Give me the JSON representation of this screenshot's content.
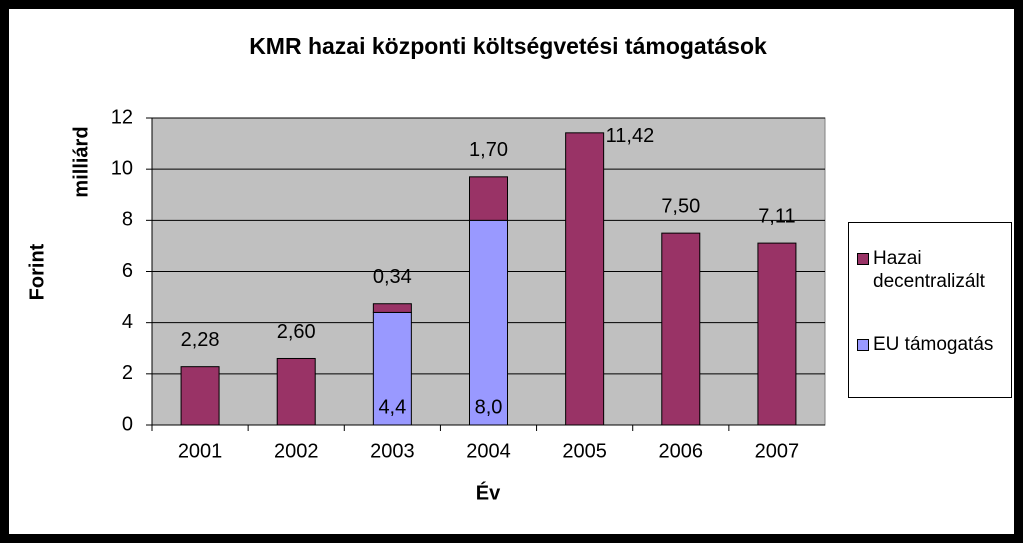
{
  "chart_data": {
    "type": "stacked_bar",
    "title": "KMR hazai központi költségvetési támogatások",
    "x_label": "Év",
    "y_label": [
      "Forint",
      "milliárd"
    ],
    "categories": [
      "2001",
      "2002",
      "2003",
      "2004",
      "2005",
      "2006",
      "2007"
    ],
    "series": [
      {
        "name": "EU támogatás",
        "color": "#9999ff",
        "values": [
          null,
          null,
          4.4,
          8.0,
          null,
          null,
          null
        ],
        "value_labels": [
          null,
          null,
          "4,4",
          "8,0",
          null,
          null,
          null
        ]
      },
      {
        "name": "Hazai decentralizált",
        "color": "#993366",
        "values": [
          2.28,
          2.6,
          0.34,
          1.7,
          11.42,
          7.5,
          7.11
        ],
        "value_labels": [
          "2,28",
          "2,60",
          "0,34",
          "1,70",
          "11,42",
          "7,50",
          "7,11"
        ]
      }
    ],
    "ylim": [
      0,
      12
    ],
    "yticks": [
      0,
      2,
      4,
      6,
      8,
      10,
      12
    ],
    "grid": true,
    "legend": "right"
  }
}
